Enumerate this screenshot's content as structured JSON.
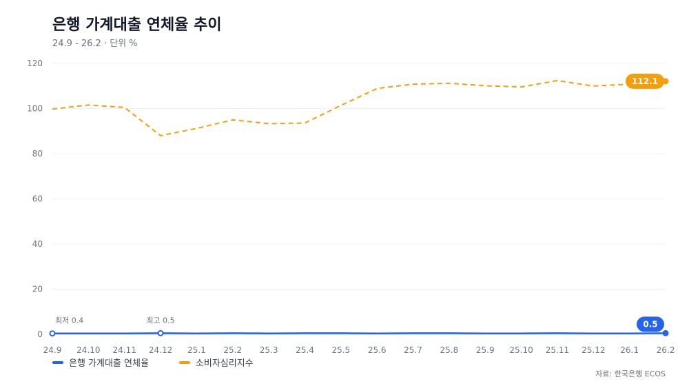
{
  "header": {
    "title": "은행 가계대출 연체율 추이",
    "subtitle": "24.9 - 26.2 · 단위 %"
  },
  "source": "자료: 한국은행 ECOS",
  "colors": {
    "delinquency": "#2563eb",
    "csi": "#f59e0b",
    "grid": "#eef0f3"
  },
  "chart_data": {
    "type": "line",
    "title": "은행 가계대출 연체율 추이",
    "subtitle": "24.9 - 26.2 · 단위 %",
    "categories": [
      "24.9",
      "24.10",
      "24.11",
      "24.12",
      "25.1",
      "25.2",
      "25.3",
      "25.4",
      "25.5",
      "25.6",
      "25.7",
      "25.8",
      "25.9",
      "25.10",
      "25.11",
      "25.12",
      "26.1",
      "26.2"
    ],
    "y_ticks": [
      0,
      20,
      40,
      60,
      80,
      100,
      120
    ],
    "ylim": [
      0,
      120
    ],
    "grid": true,
    "legend_position": "bottom-left",
    "series": [
      {
        "name": "은행 가계대출 연체율",
        "color": "#2563eb",
        "style": "solid",
        "values": [
          0.4,
          0.4,
          0.4,
          0.5,
          0.4,
          0.5,
          0.4,
          0.5,
          0.5,
          0.4,
          0.5,
          0.5,
          0.4,
          0.4,
          0.5,
          0.4,
          0.4,
          0.5
        ]
      },
      {
        "name": "소비자심리지수",
        "color": "#f59e0b",
        "style": "dashed",
        "values": [
          99.8,
          101.6,
          100.5,
          88.0,
          91.2,
          95.0,
          93.3,
          93.6,
          101.4,
          108.9,
          110.8,
          111.2,
          110.1,
          109.6,
          112.4,
          110.0,
          110.8,
          112.1
        ]
      }
    ],
    "annotations": [
      {
        "series": 0,
        "index": 0,
        "text": "최저 0.4"
      },
      {
        "series": 0,
        "index": 3,
        "text": "최고 0.5"
      }
    ],
    "end_labels": [
      {
        "series": 1,
        "text": "112.1"
      },
      {
        "series": 0,
        "text": "0.5"
      }
    ]
  }
}
